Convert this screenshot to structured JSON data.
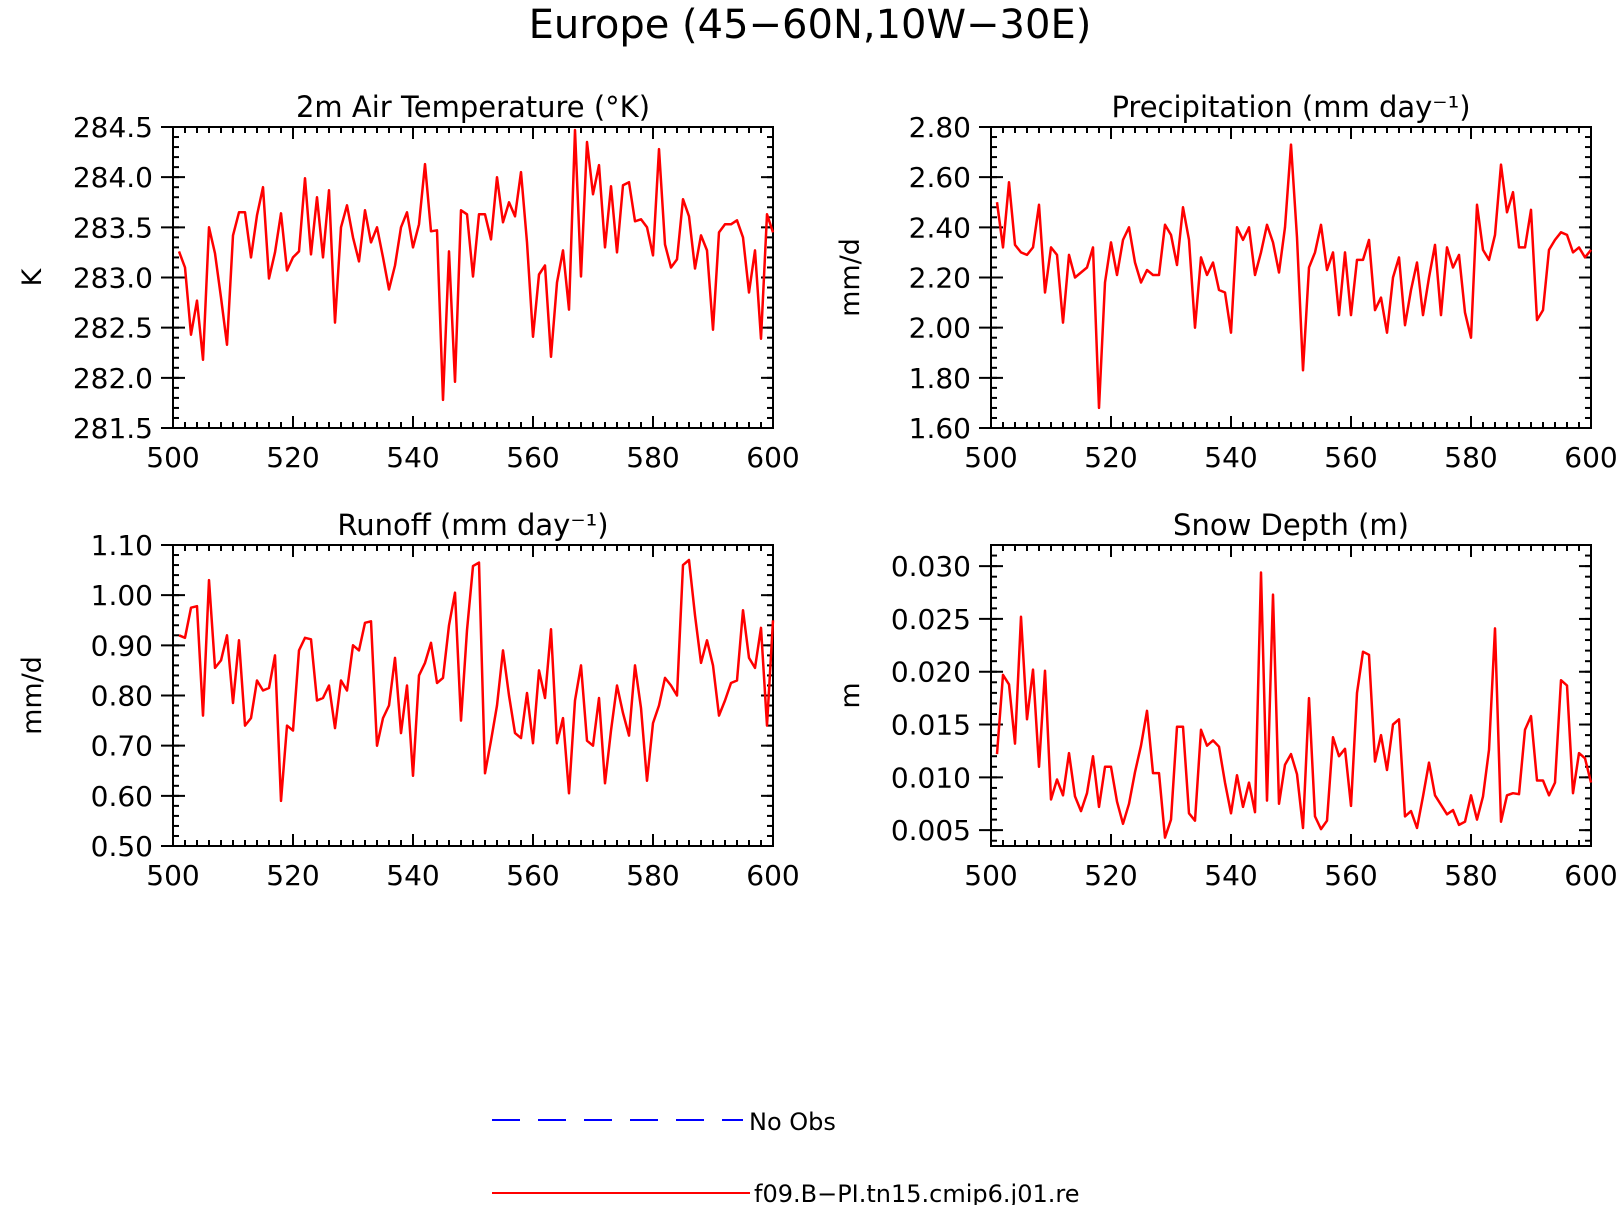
{
  "title": "Europe (45−60N,10W−30E)",
  "colors": {
    "model": "#ff0000",
    "obs": "#0000ff"
  },
  "legend": [
    {
      "label": "No Obs",
      "style": "dashed",
      "color": "#0000ff"
    },
    {
      "label": "f09.B−PI.tn15.cmip6.j01.re",
      "style": "solid",
      "color": "#ff0000"
    }
  ],
  "chart_data": [
    {
      "type": "line",
      "title": "2m Air Temperature (°K)",
      "ylabel": "K",
      "xlim": [
        500,
        600
      ],
      "ylim": [
        281.5,
        284.5
      ],
      "xticks": [
        "500",
        "520",
        "540",
        "560",
        "580",
        "600"
      ],
      "yticks": [
        "281.5",
        "282.0",
        "282.5",
        "283.0",
        "283.5",
        "284.0",
        "284.5"
      ],
      "x_start": 501,
      "series": [
        {
          "name": "f09.B−PI.tn15.cmip6.j01.re",
          "values": [
            283.26,
            283.1,
            282.43,
            282.77,
            282.18,
            283.5,
            283.24,
            282.8,
            282.33,
            283.42,
            283.65,
            283.65,
            283.2,
            283.62,
            283.9,
            282.99,
            283.25,
            283.64,
            283.07,
            283.2,
            283.26,
            283.99,
            283.23,
            283.8,
            283.2,
            283.87,
            282.55,
            283.5,
            283.72,
            283.4,
            283.16,
            283.67,
            283.35,
            283.5,
            283.2,
            282.88,
            283.12,
            283.5,
            283.65,
            283.3,
            283.53,
            284.13,
            283.46,
            283.47,
            281.78,
            283.26,
            281.96,
            283.67,
            283.63,
            283.01,
            283.63,
            283.63,
            283.38,
            284.0,
            283.55,
            283.75,
            283.61,
            284.05,
            283.35,
            282.41,
            283.03,
            283.12,
            282.21,
            282.95,
            283.27,
            282.68,
            284.47,
            283.01,
            284.35,
            283.83,
            284.12,
            283.3,
            283.91,
            283.25,
            283.92,
            283.95,
            283.56,
            283.58,
            283.5,
            283.22,
            284.28,
            283.33,
            283.1,
            283.18,
            283.78,
            283.61,
            283.09,
            283.42,
            283.27,
            282.48,
            283.45,
            283.53,
            283.53,
            283.57,
            283.4,
            282.85,
            283.27,
            282.39,
            283.63,
            283.45
          ]
        }
      ]
    },
    {
      "type": "line",
      "title": "Precipitation (mm day⁻¹)",
      "ylabel": "mm/d",
      "xlim": [
        500,
        600
      ],
      "ylim": [
        1.6,
        2.8
      ],
      "xticks": [
        "500",
        "520",
        "540",
        "560",
        "580",
        "600"
      ],
      "yticks": [
        "1.60",
        "1.80",
        "2.00",
        "2.20",
        "2.40",
        "2.60",
        "2.80"
      ],
      "x_start": 501,
      "series": [
        {
          "name": "f09.B−PI.tn15.cmip6.j01.re",
          "values": [
            2.5,
            2.32,
            2.58,
            2.33,
            2.3,
            2.29,
            2.32,
            2.49,
            2.14,
            2.32,
            2.29,
            2.02,
            2.29,
            2.2,
            2.22,
            2.24,
            2.32,
            1.68,
            2.18,
            2.34,
            2.21,
            2.35,
            2.4,
            2.26,
            2.18,
            2.23,
            2.21,
            2.21,
            2.41,
            2.37,
            2.25,
            2.48,
            2.35,
            2.0,
            2.28,
            2.21,
            2.26,
            2.15,
            2.14,
            1.98,
            2.4,
            2.35,
            2.4,
            2.21,
            2.3,
            2.41,
            2.34,
            2.22,
            2.4,
            2.73,
            2.36,
            1.83,
            2.24,
            2.3,
            2.41,
            2.23,
            2.3,
            2.05,
            2.3,
            2.05,
            2.27,
            2.27,
            2.35,
            2.07,
            2.12,
            1.98,
            2.2,
            2.28,
            2.01,
            2.15,
            2.26,
            2.05,
            2.2,
            2.33,
            2.05,
            2.32,
            2.24,
            2.29,
            2.06,
            1.96,
            2.49,
            2.31,
            2.27,
            2.37,
            2.65,
            2.46,
            2.54,
            2.32,
            2.32,
            2.47,
            2.03,
            2.07,
            2.31,
            2.35,
            2.38,
            2.37,
            2.3,
            2.32,
            2.28,
            2.31
          ]
        }
      ]
    },
    {
      "type": "line",
      "title": "Runoff (mm day⁻¹)",
      "ylabel": "mm/d",
      "xlim": [
        500,
        600
      ],
      "ylim": [
        0.5,
        1.1
      ],
      "xticks": [
        "500",
        "520",
        "540",
        "560",
        "580",
        "600"
      ],
      "yticks": [
        "0.50",
        "0.60",
        "0.70",
        "0.80",
        "0.90",
        "1.00",
        "1.10"
      ],
      "x_start": 501,
      "series": [
        {
          "name": "f09.B−PI.tn15.cmip6.j01.re",
          "values": [
            0.92,
            0.915,
            0.975,
            0.978,
            0.76,
            1.03,
            0.855,
            0.87,
            0.92,
            0.785,
            0.91,
            0.74,
            0.755,
            0.83,
            0.81,
            0.815,
            0.88,
            0.59,
            0.74,
            0.73,
            0.89,
            0.915,
            0.912,
            0.79,
            0.795,
            0.82,
            0.735,
            0.83,
            0.81,
            0.9,
            0.89,
            0.945,
            0.948,
            0.7,
            0.755,
            0.78,
            0.875,
            0.725,
            0.82,
            0.64,
            0.84,
            0.865,
            0.905,
            0.825,
            0.835,
            0.94,
            1.005,
            0.75,
            0.93,
            1.058,
            1.065,
            0.645,
            0.71,
            0.78,
            0.89,
            0.8,
            0.725,
            0.715,
            0.805,
            0.705,
            0.85,
            0.795,
            0.932,
            0.705,
            0.755,
            0.605,
            0.79,
            0.86,
            0.71,
            0.7,
            0.795,
            0.625,
            0.73,
            0.82,
            0.765,
            0.72,
            0.86,
            0.775,
            0.63,
            0.745,
            0.78,
            0.835,
            0.82,
            0.8,
            1.06,
            1.07,
            0.96,
            0.865,
            0.91,
            0.86,
            0.76,
            0.79,
            0.825,
            0.83,
            0.97,
            0.875,
            0.855,
            0.935,
            0.74,
            0.95
          ]
        }
      ]
    },
    {
      "type": "line",
      "title": "Snow Depth (m)",
      "ylabel": "m",
      "xlim": [
        500,
        600
      ],
      "ylim": [
        0.0035,
        0.032
      ],
      "xticks": [
        "500",
        "520",
        "540",
        "560",
        "580",
        "600"
      ],
      "yticks": [
        "0.005",
        "0.010",
        "0.015",
        "0.020",
        "0.025",
        "0.030"
      ],
      "ytick_values": [
        0.005,
        0.01,
        0.015,
        0.02,
        0.025,
        0.03
      ],
      "x_start": 501,
      "series": [
        {
          "name": "f09.B−PI.tn15.cmip6.j01.re",
          "values": [
            0.0122,
            0.0197,
            0.0188,
            0.0132,
            0.0252,
            0.0155,
            0.0202,
            0.011,
            0.0201,
            0.0079,
            0.0098,
            0.0083,
            0.0123,
            0.0082,
            0.0068,
            0.0085,
            0.012,
            0.0072,
            0.011,
            0.011,
            0.0077,
            0.0056,
            0.0075,
            0.0105,
            0.013,
            0.0163,
            0.0104,
            0.0104,
            0.0043,
            0.006,
            0.0148,
            0.0148,
            0.0066,
            0.0059,
            0.0145,
            0.013,
            0.0135,
            0.0129,
            0.0095,
            0.0066,
            0.0102,
            0.0072,
            0.0095,
            0.0067,
            0.0294,
            0.0078,
            0.0273,
            0.0075,
            0.0112,
            0.0122,
            0.0103,
            0.0052,
            0.0175,
            0.0063,
            0.0051,
            0.0059,
            0.0138,
            0.012,
            0.0127,
            0.0073,
            0.018,
            0.0219,
            0.0216,
            0.0115,
            0.014,
            0.0107,
            0.015,
            0.0155,
            0.0063,
            0.0068,
            0.0052,
            0.0082,
            0.0114,
            0.0083,
            0.0074,
            0.0065,
            0.0069,
            0.0055,
            0.0058,
            0.0083,
            0.006,
            0.0082,
            0.0126,
            0.0241,
            0.0058,
            0.0083,
            0.0085,
            0.0084,
            0.0145,
            0.0158,
            0.0097,
            0.0097,
            0.0083,
            0.0095,
            0.0192,
            0.0187,
            0.0085,
            0.0123,
            0.0118,
            0.0095
          ]
        }
      ]
    }
  ]
}
